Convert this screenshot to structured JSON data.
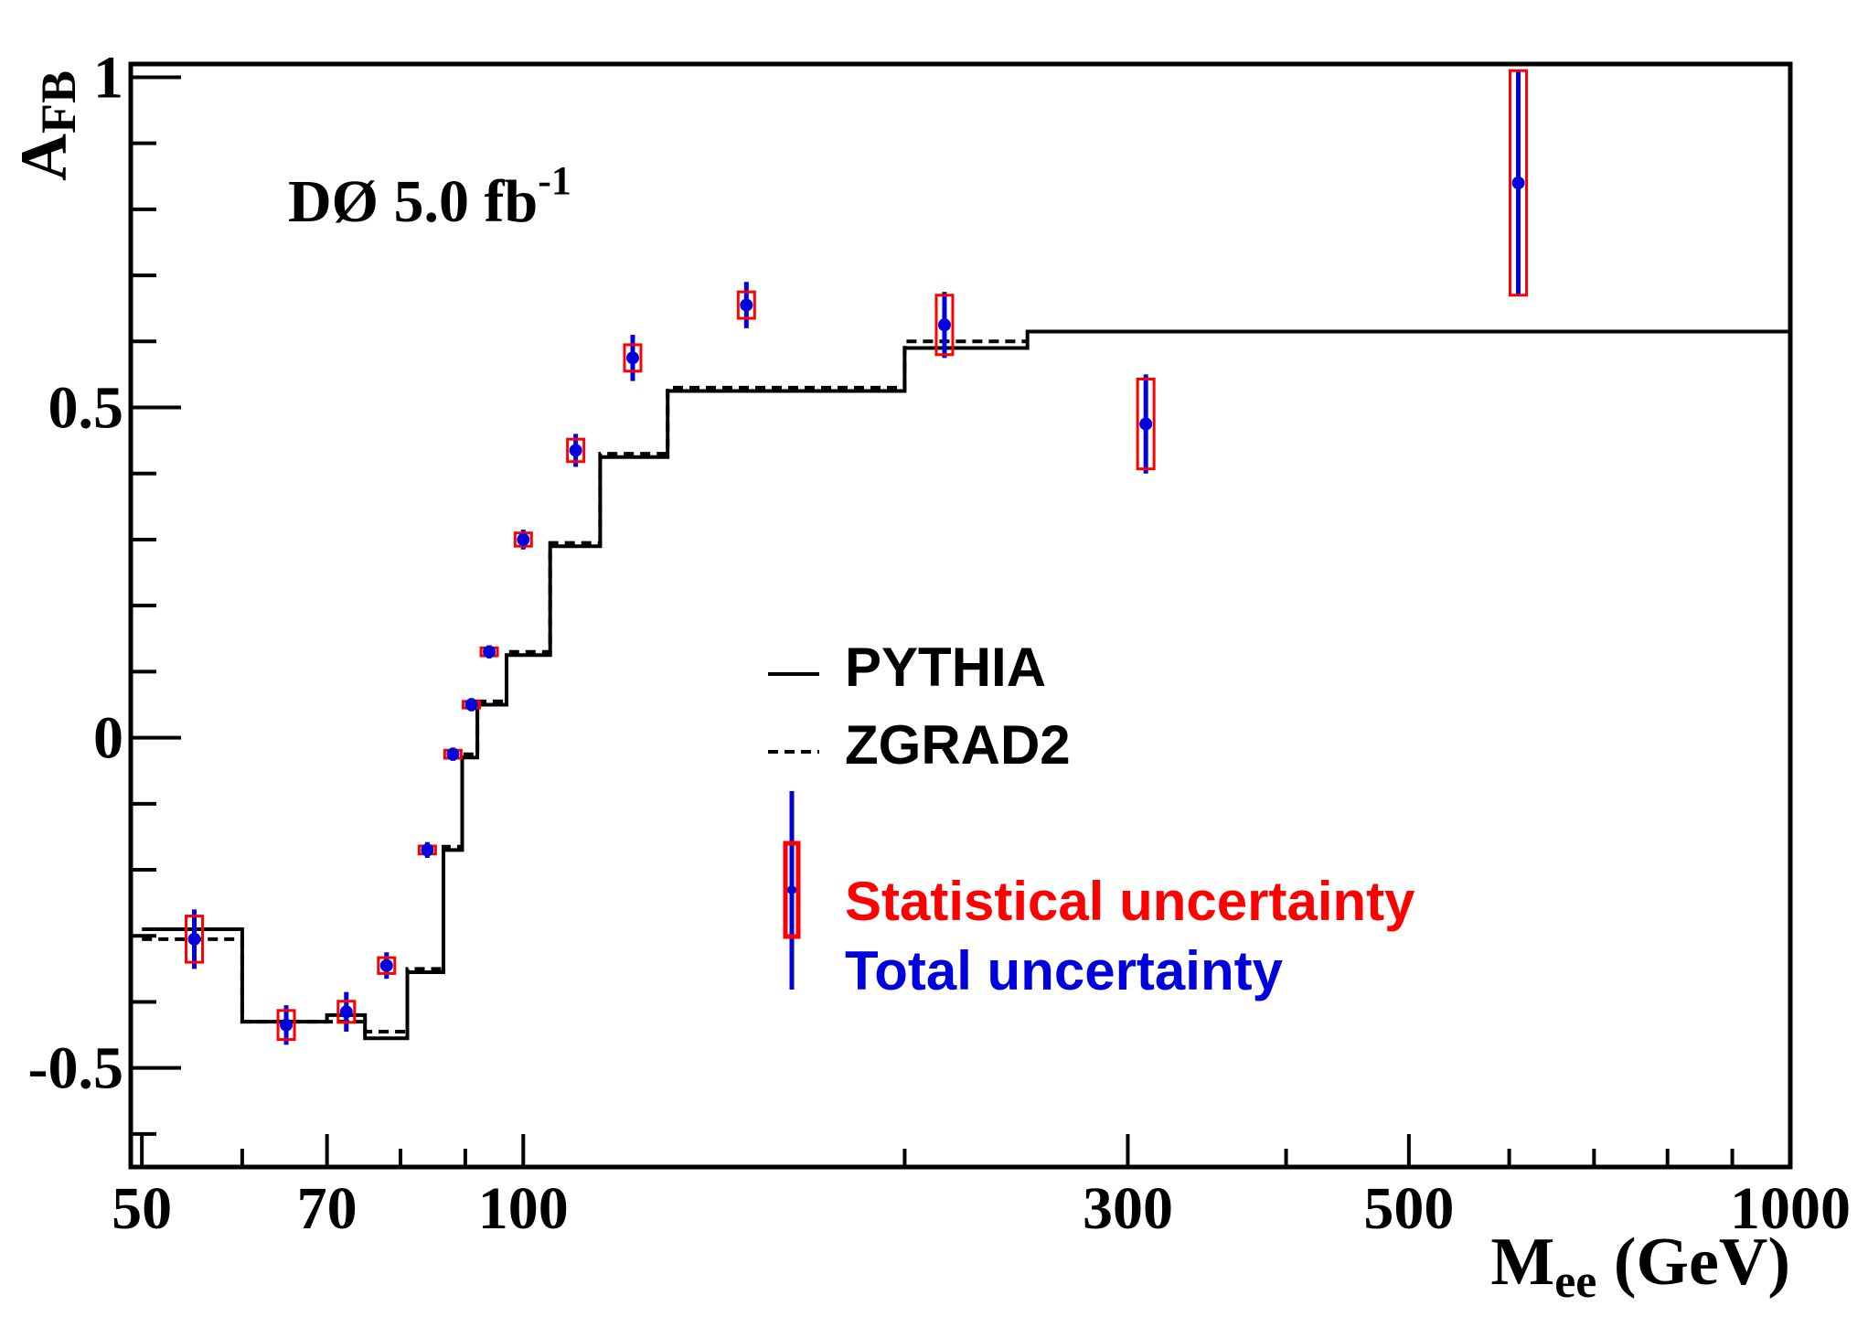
{
  "chart_data": {
    "type": "scatter",
    "title": "",
    "annotation": {
      "main": "DØ 5.0 fb",
      "superscript": "-1"
    },
    "xlabel": {
      "main": "M",
      "sub": "ee",
      "unit": " (GeV)"
    },
    "ylabel": {
      "main": "A",
      "sub": "FB"
    },
    "x_scale": "log",
    "xlim": [
      49,
      1000
    ],
    "ylim": [
      -0.65,
      1.02
    ],
    "x_tick_labels": [
      "50",
      "70",
      "100",
      "300",
      "500",
      "1000"
    ],
    "x_tick_values": [
      50,
      70,
      100,
      300,
      500,
      1000
    ],
    "x_minor_ticks": [
      60,
      80,
      90,
      200,
      400,
      600,
      700,
      800,
      900
    ],
    "y_tick_labels": [
      "-0.5",
      "0",
      "0.5",
      "1"
    ],
    "y_tick_values": [
      -0.5,
      0,
      0.5,
      1
    ],
    "y_minor_ticks": [
      -0.6,
      -0.4,
      -0.3,
      -0.2,
      -0.1,
      0.1,
      0.2,
      0.3,
      0.4,
      0.6,
      0.7,
      0.8,
      0.9
    ],
    "legend": {
      "placement": "center",
      "entries": [
        {
          "label": "PYTHIA",
          "style": "solid",
          "color": "#000000"
        },
        {
          "label": "ZGRAD2",
          "style": "dashed",
          "color": "#000000"
        },
        {
          "label": "Statistical uncertainty",
          "style": "box",
          "color": "#ff0000"
        },
        {
          "label": "Total uncertainty",
          "style": "bar",
          "color": "#0000dd"
        }
      ]
    },
    "series": [
      {
        "name": "PYTHIA",
        "style": "step-solid",
        "edges": [
          50,
          60,
          70,
          75,
          81,
          86.5,
          89.5,
          92,
          97,
          105,
          115,
          130,
          200,
          250,
          1000
        ],
        "values": [
          -0.29,
          -0.43,
          -0.42,
          -0.455,
          -0.355,
          -0.17,
          -0.03,
          0.05,
          0.125,
          0.29,
          0.425,
          0.525,
          0.59,
          0.615,
          0.62
        ]
      },
      {
        "name": "ZGRAD2",
        "style": "step-dashed",
        "edges": [
          50,
          60,
          70,
          75,
          81,
          86.5,
          89.5,
          92,
          97,
          105,
          115,
          130,
          200,
          250
        ],
        "values": [
          -0.305,
          -0.43,
          -0.43,
          -0.445,
          -0.35,
          -0.165,
          -0.025,
          0.055,
          0.13,
          0.295,
          0.43,
          0.53,
          0.6,
          0.6
        ]
      },
      {
        "name": "Data",
        "style": "points",
        "x": [
          55,
          65,
          72.5,
          78,
          84,
          88,
          91,
          94,
          100,
          110,
          122,
          150,
          215,
          310,
          610
        ],
        "y": [
          -0.305,
          -0.435,
          -0.415,
          -0.345,
          -0.17,
          -0.025,
          0.05,
          0.13,
          0.3,
          0.435,
          0.575,
          0.655,
          0.625,
          0.475,
          0.84
        ],
        "stat_err": [
          0.035,
          0.022,
          0.016,
          0.012,
          0.006,
          0.006,
          0.005,
          0.006,
          0.01,
          0.017,
          0.02,
          0.02,
          0.045,
          0.068,
          0.17
        ],
        "total_err": [
          0.045,
          0.03,
          0.03,
          0.02,
          0.012,
          0.01,
          0.01,
          0.01,
          0.015,
          0.025,
          0.035,
          0.035,
          0.05,
          0.075,
          0.17
        ]
      }
    ],
    "colors": {
      "stat": "#ff0000",
      "total": "#0000dd",
      "theory": "#000000",
      "frame": "#000000"
    }
  }
}
